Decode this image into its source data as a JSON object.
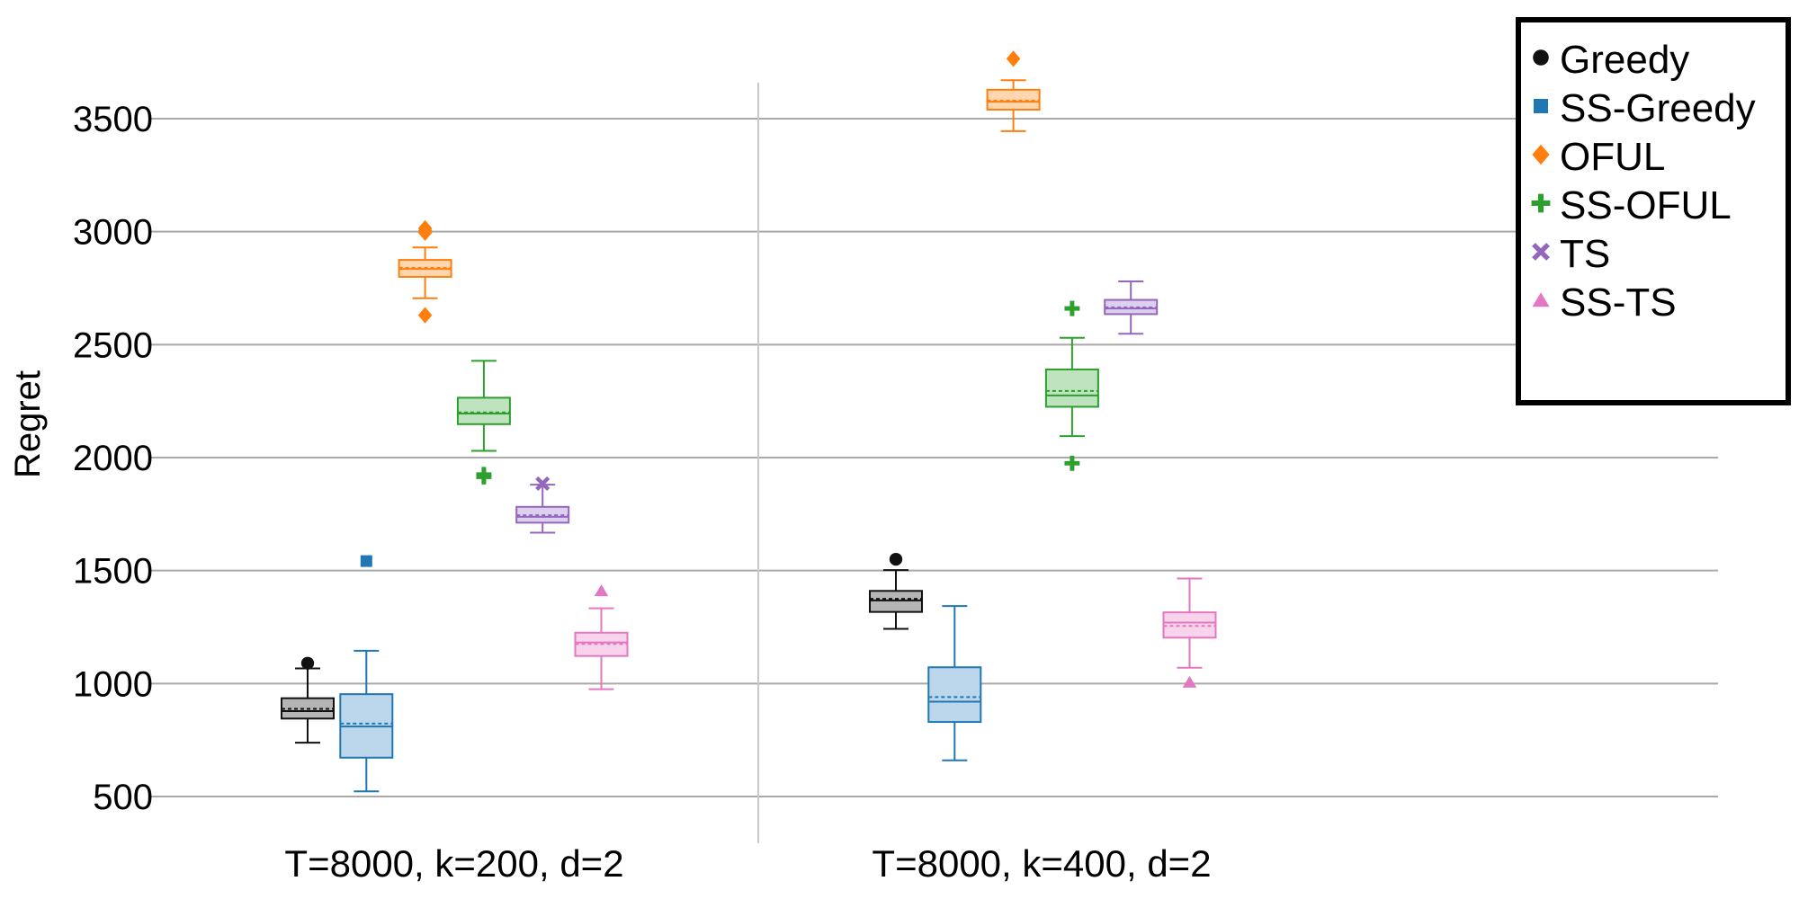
{
  "chart_data": {
    "type": "boxplot",
    "ylabel": "Regret",
    "ylim": [
      300,
      3900
    ],
    "yticks": [
      500,
      1000,
      1500,
      2000,
      2500,
      3000,
      3500
    ],
    "categories": [
      "T=8000, k=200, d=2",
      "T=8000, k=400, d=2"
    ],
    "series": [
      {
        "name": "Greedy",
        "color": "#111111",
        "fill": "#b5b5b5",
        "marker": "circle",
        "boxes": [
          {
            "min": 738,
            "q1": 845,
            "median": 878,
            "mean": 888,
            "q3": 935,
            "max": 1067,
            "outliers": [
              1090
            ]
          },
          {
            "min": 1242,
            "q1": 1317,
            "median": 1368,
            "mean": 1375,
            "q3": 1410,
            "max": 1502,
            "outliers": [
              1550
            ]
          }
        ]
      },
      {
        "name": "SS-Greedy",
        "color": "#1f77b4",
        "fill": "#bcd6ec",
        "marker": "square",
        "boxes": [
          {
            "min": 523,
            "q1": 672,
            "median": 810,
            "mean": 823,
            "q3": 953,
            "max": 1145,
            "outliers": [
              1542
            ]
          },
          {
            "min": 660,
            "q1": 830,
            "median": 920,
            "mean": 940,
            "q3": 1072,
            "max": 1343,
            "outliers": []
          }
        ]
      },
      {
        "name": "OFUL",
        "color": "#ff7f0e",
        "fill": "#fed7b1",
        "marker": "diamond",
        "boxes": [
          {
            "min": 2705,
            "q1": 2800,
            "median": 2835,
            "mean": 2840,
            "q3": 2875,
            "max": 2930,
            "outliers": [
              2630,
              2995,
              3005,
              3015
            ]
          },
          {
            "min": 3445,
            "q1": 3540,
            "median": 3575,
            "mean": 3580,
            "q3": 3628,
            "max": 3670,
            "outliers": [
              3765
            ]
          }
        ]
      },
      {
        "name": "SS-OFUL",
        "color": "#2ca02c",
        "fill": "#bfe2bf",
        "marker": "plus",
        "boxes": [
          {
            "min": 2030,
            "q1": 2148,
            "median": 2195,
            "mean": 2200,
            "q3": 2265,
            "max": 2428,
            "outliers": [
              1915,
              1925
            ]
          },
          {
            "min": 2095,
            "q1": 2225,
            "median": 2275,
            "mean": 2295,
            "q3": 2390,
            "max": 2530,
            "outliers": [
              1975,
              2660
            ]
          }
        ]
      },
      {
        "name": "TS",
        "color": "#9467bd",
        "fill": "#dcd0ee",
        "marker": "x",
        "boxes": [
          {
            "min": 1668,
            "q1": 1712,
            "median": 1738,
            "mean": 1745,
            "q3": 1782,
            "max": 1880,
            "outliers": [
              1885
            ]
          },
          {
            "min": 2548,
            "q1": 2635,
            "median": 2660,
            "mean": 2665,
            "q3": 2698,
            "max": 2780,
            "outliers": []
          }
        ]
      },
      {
        "name": "SS-TS",
        "color": "#e377c2",
        "fill": "#f8d4ec",
        "marker": "triangle",
        "boxes": [
          {
            "min": 975,
            "q1": 1122,
            "median": 1182,
            "mean": 1175,
            "q3": 1225,
            "max": 1333,
            "outliers": [
              1410
            ]
          },
          {
            "min": 1070,
            "q1": 1203,
            "median": 1270,
            "mean": 1255,
            "q3": 1315,
            "max": 1465,
            "outliers": [
              1005
            ]
          }
        ]
      }
    ],
    "legend_position": "top-right",
    "grid": true
  }
}
